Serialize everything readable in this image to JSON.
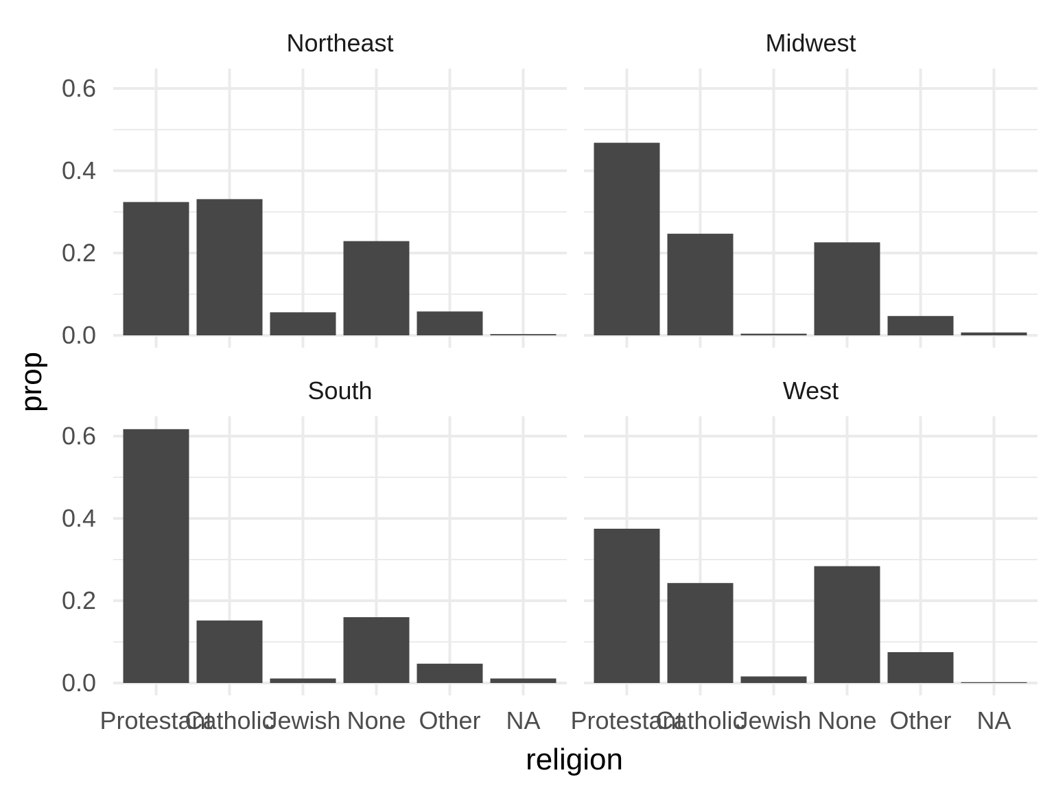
{
  "chart_data": {
    "type": "bar",
    "xlabel": "religion",
    "ylabel": "prop",
    "categories": [
      "Protestant",
      "Catholic",
      "Jewish",
      "None",
      "Other",
      "NA"
    ],
    "ylim": [
      0,
      0.65
    ],
    "yticks": [
      "0.0",
      "0.2",
      "0.4",
      "0.6"
    ],
    "grid": true,
    "bar_color": "#474747",
    "facets": [
      {
        "title": "Northeast",
        "values": [
          0.324,
          0.331,
          0.056,
          0.229,
          0.058,
          0.003
        ]
      },
      {
        "title": "Midwest",
        "values": [
          0.468,
          0.247,
          0.004,
          0.226,
          0.047,
          0.007
        ]
      },
      {
        "title": "South",
        "values": [
          0.617,
          0.152,
          0.011,
          0.16,
          0.047,
          0.011
        ]
      },
      {
        "title": "West",
        "values": [
          0.375,
          0.243,
          0.016,
          0.284,
          0.075,
          0.002
        ]
      }
    ]
  }
}
